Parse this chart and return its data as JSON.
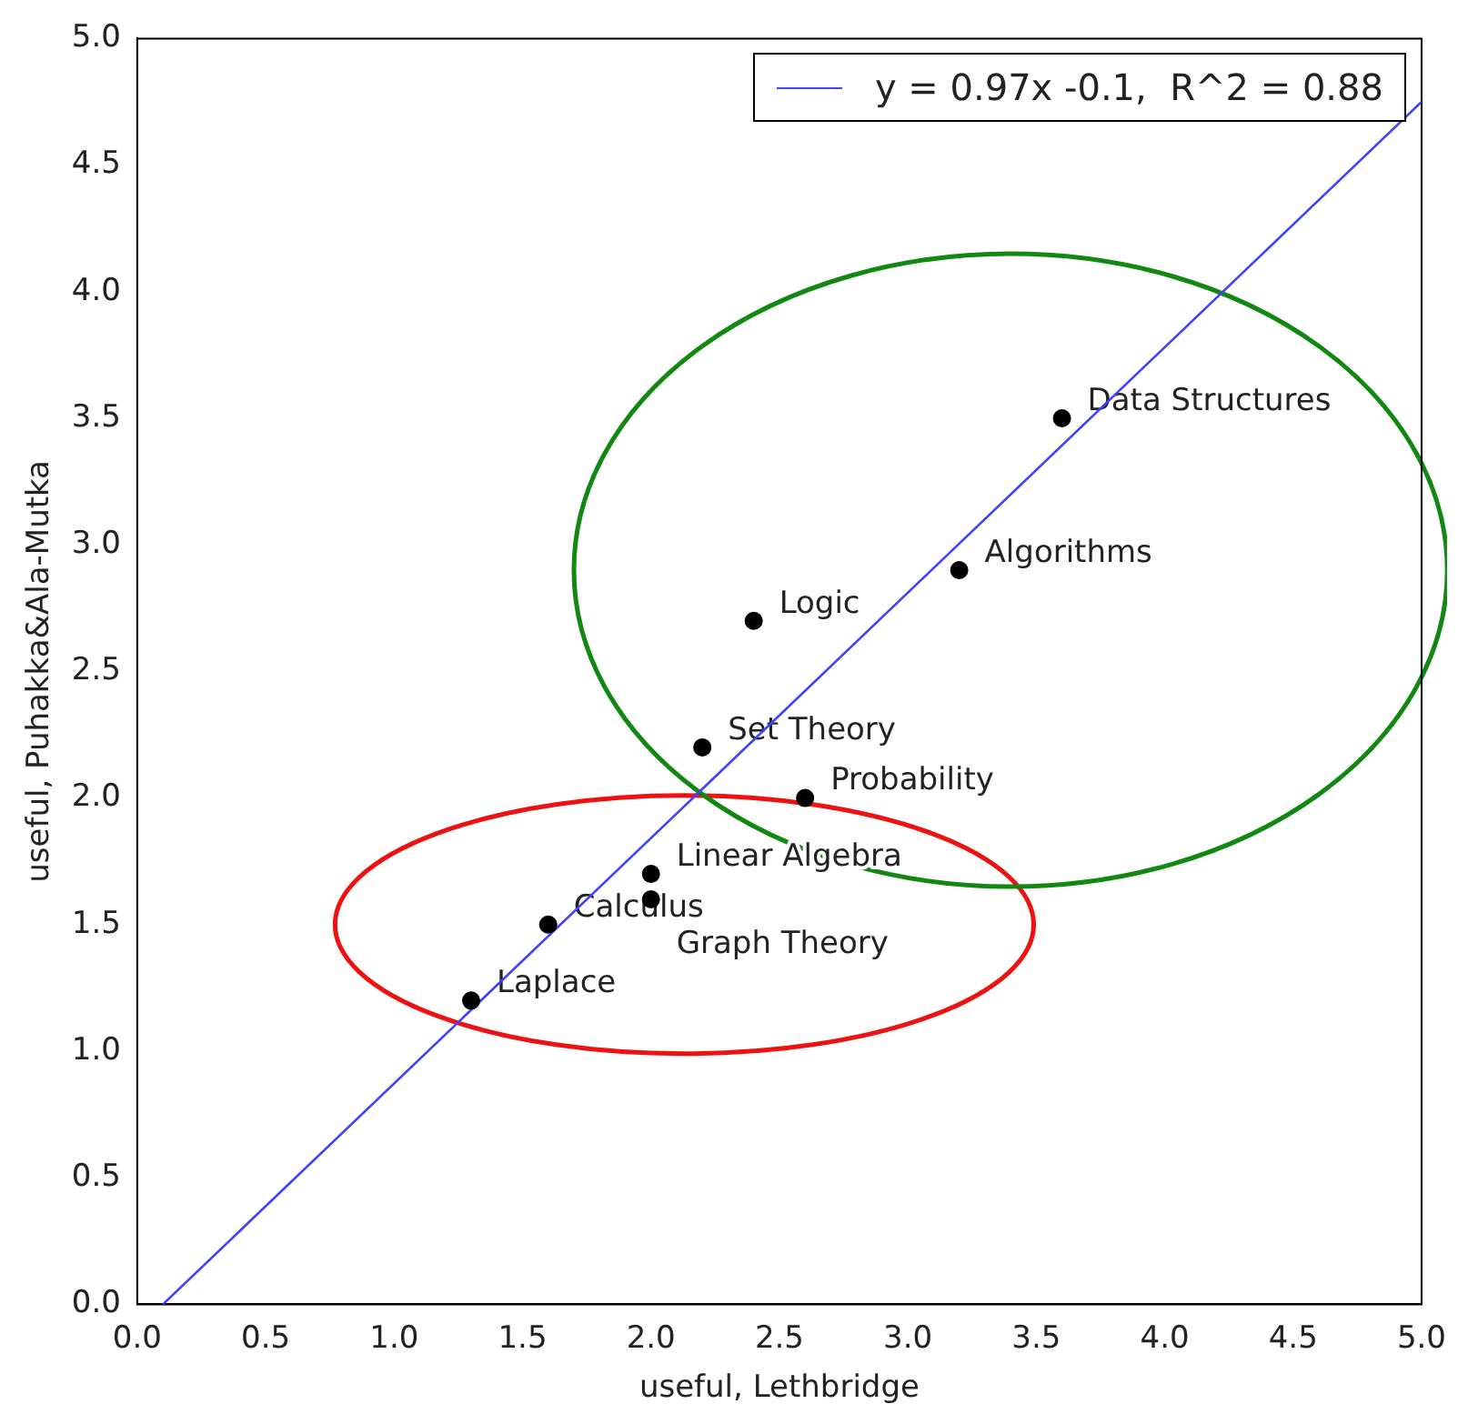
{
  "chart_data": {
    "type": "scatter",
    "xlabel": "useful, Lethbridge",
    "ylabel": "useful, Puhakka&Ala-Mutka",
    "series": [
      {
        "marker": "circle",
        "color": "#000000",
        "x": [
          1.3,
          1.6,
          2.0,
          2.0,
          2.2,
          2.6,
          2.4,
          3.2,
          3.6
        ],
        "values": [
          1.2,
          1.5,
          1.7,
          1.6,
          2.2,
          2.0,
          2.7,
          2.9,
          3.5
        ]
      },
      {
        "type": "line",
        "marker": "none",
        "name": "y = 0.97x -0.1,  R^2 = 0.88",
        "color": "#4040ff",
        "x": [
          0.1,
          5.0
        ],
        "values": [
          0,
          4.75
        ]
      }
    ],
    "annotations": [
      {
        "text": "Laplace",
        "x": 1.3,
        "y": 1.2
      },
      {
        "text": "Calculus",
        "x": 1.6,
        "y": 1.5
      },
      {
        "text": "Linear Algebra",
        "x": 2.0,
        "y": 1.7
      },
      {
        "text": "Graph Theory",
        "x": 2.0,
        "y": 1.6
      },
      {
        "text": "Set Theory",
        "x": 2.2,
        "y": 2.2
      },
      {
        "text": "Probability",
        "x": 2.6,
        "y": 2.0
      },
      {
        "text": "Logic",
        "x": 2.4,
        "y": 2.7
      },
      {
        "text": "Algorithms",
        "x": 3.2,
        "y": 2.9
      },
      {
        "text": "Data Structures",
        "x": 3.6,
        "y": 3.5
      }
    ],
    "xlim": [
      0,
      5
    ],
    "ylim": [
      0,
      5
    ],
    "xticks": [
      {
        "value": 0,
        "label": "0.0"
      },
      {
        "value": 0.5,
        "label": "0.5"
      },
      {
        "value": 1,
        "label": "1.0"
      },
      {
        "value": 1.5,
        "label": "1.5"
      },
      {
        "value": 2,
        "label": "2.0"
      },
      {
        "value": 2.5,
        "label": "2.5"
      },
      {
        "value": 3,
        "label": "3.0"
      },
      {
        "value": 3.5,
        "label": "3.5"
      },
      {
        "value": 4,
        "label": "4.0"
      },
      {
        "value": 4.5,
        "label": "4.5"
      },
      {
        "value": 5,
        "label": "5.0"
      }
    ],
    "yticks": [
      {
        "value": 0,
        "label": "0.0"
      },
      {
        "value": 0.5,
        "label": "0.5"
      },
      {
        "value": 1,
        "label": "1.0"
      },
      {
        "value": 1.5,
        "label": "1.5"
      },
      {
        "value": 2,
        "label": "2.0"
      },
      {
        "value": 2.5,
        "label": "2.5"
      },
      {
        "value": 3,
        "label": "3.0"
      },
      {
        "value": 3.5,
        "label": "3.5"
      },
      {
        "value": 4,
        "label": "4.0"
      },
      {
        "value": 4.5,
        "label": "4.5"
      },
      {
        "value": 5,
        "label": "5.0"
      }
    ],
    "grid": false,
    "legend": "top right",
    "line_style": "solid"
  }
}
